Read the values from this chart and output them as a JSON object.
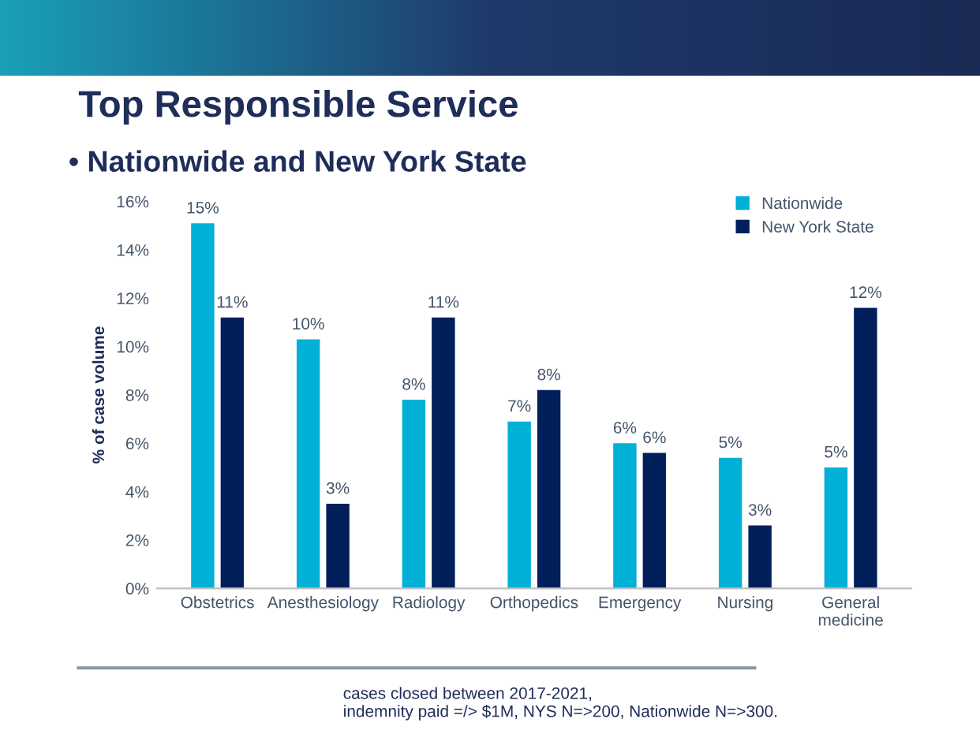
{
  "chart_data": {
    "type": "bar",
    "title": "Top Responsible Service",
    "subtitle": "• Nationwide and New York State",
    "ylabel": "% of case volume",
    "categories": [
      "Obstetrics",
      "Anesthesiology",
      "Radiology",
      "Orthopedics",
      "Emergency",
      "Nursing",
      "General\nmedicine"
    ],
    "series": [
      {
        "name": "Nationwide",
        "color": "#00b0d6",
        "values": [
          15.1,
          10.3,
          7.8,
          6.9,
          6.0,
          5.4,
          5.0
        ],
        "value_labels": [
          "15%",
          "10%",
          "8%",
          "7%",
          "6%",
          "5%",
          "5%"
        ]
      },
      {
        "name": "New York State",
        "color": "#001f5b",
        "values": [
          11.2,
          3.5,
          11.2,
          8.2,
          5.6,
          2.6,
          11.6
        ],
        "value_labels": [
          "11%",
          "3%",
          "11%",
          "8%",
          "6%",
          "3%",
          "12%"
        ]
      }
    ],
    "ylim": [
      0,
      16
    ],
    "yticks": [
      {
        "value": 0,
        "label": "0%"
      },
      {
        "value": 2,
        "label": "2%"
      },
      {
        "value": 4,
        "label": "4%"
      },
      {
        "value": 6,
        "label": "6%"
      },
      {
        "value": 8,
        "label": "8%"
      },
      {
        "value": 10,
        "label": "10%"
      },
      {
        "value": 12,
        "label": "12%"
      },
      {
        "value": 14,
        "label": "14%"
      },
      {
        "value": 16,
        "label": "16%"
      }
    ],
    "grid": false,
    "legend": "top right",
    "annotations": [
      "cases closed between 2017-2021,\nindemnity paid =/> $1M, NYS N=>200, Nationwide N=>300."
    ]
  }
}
